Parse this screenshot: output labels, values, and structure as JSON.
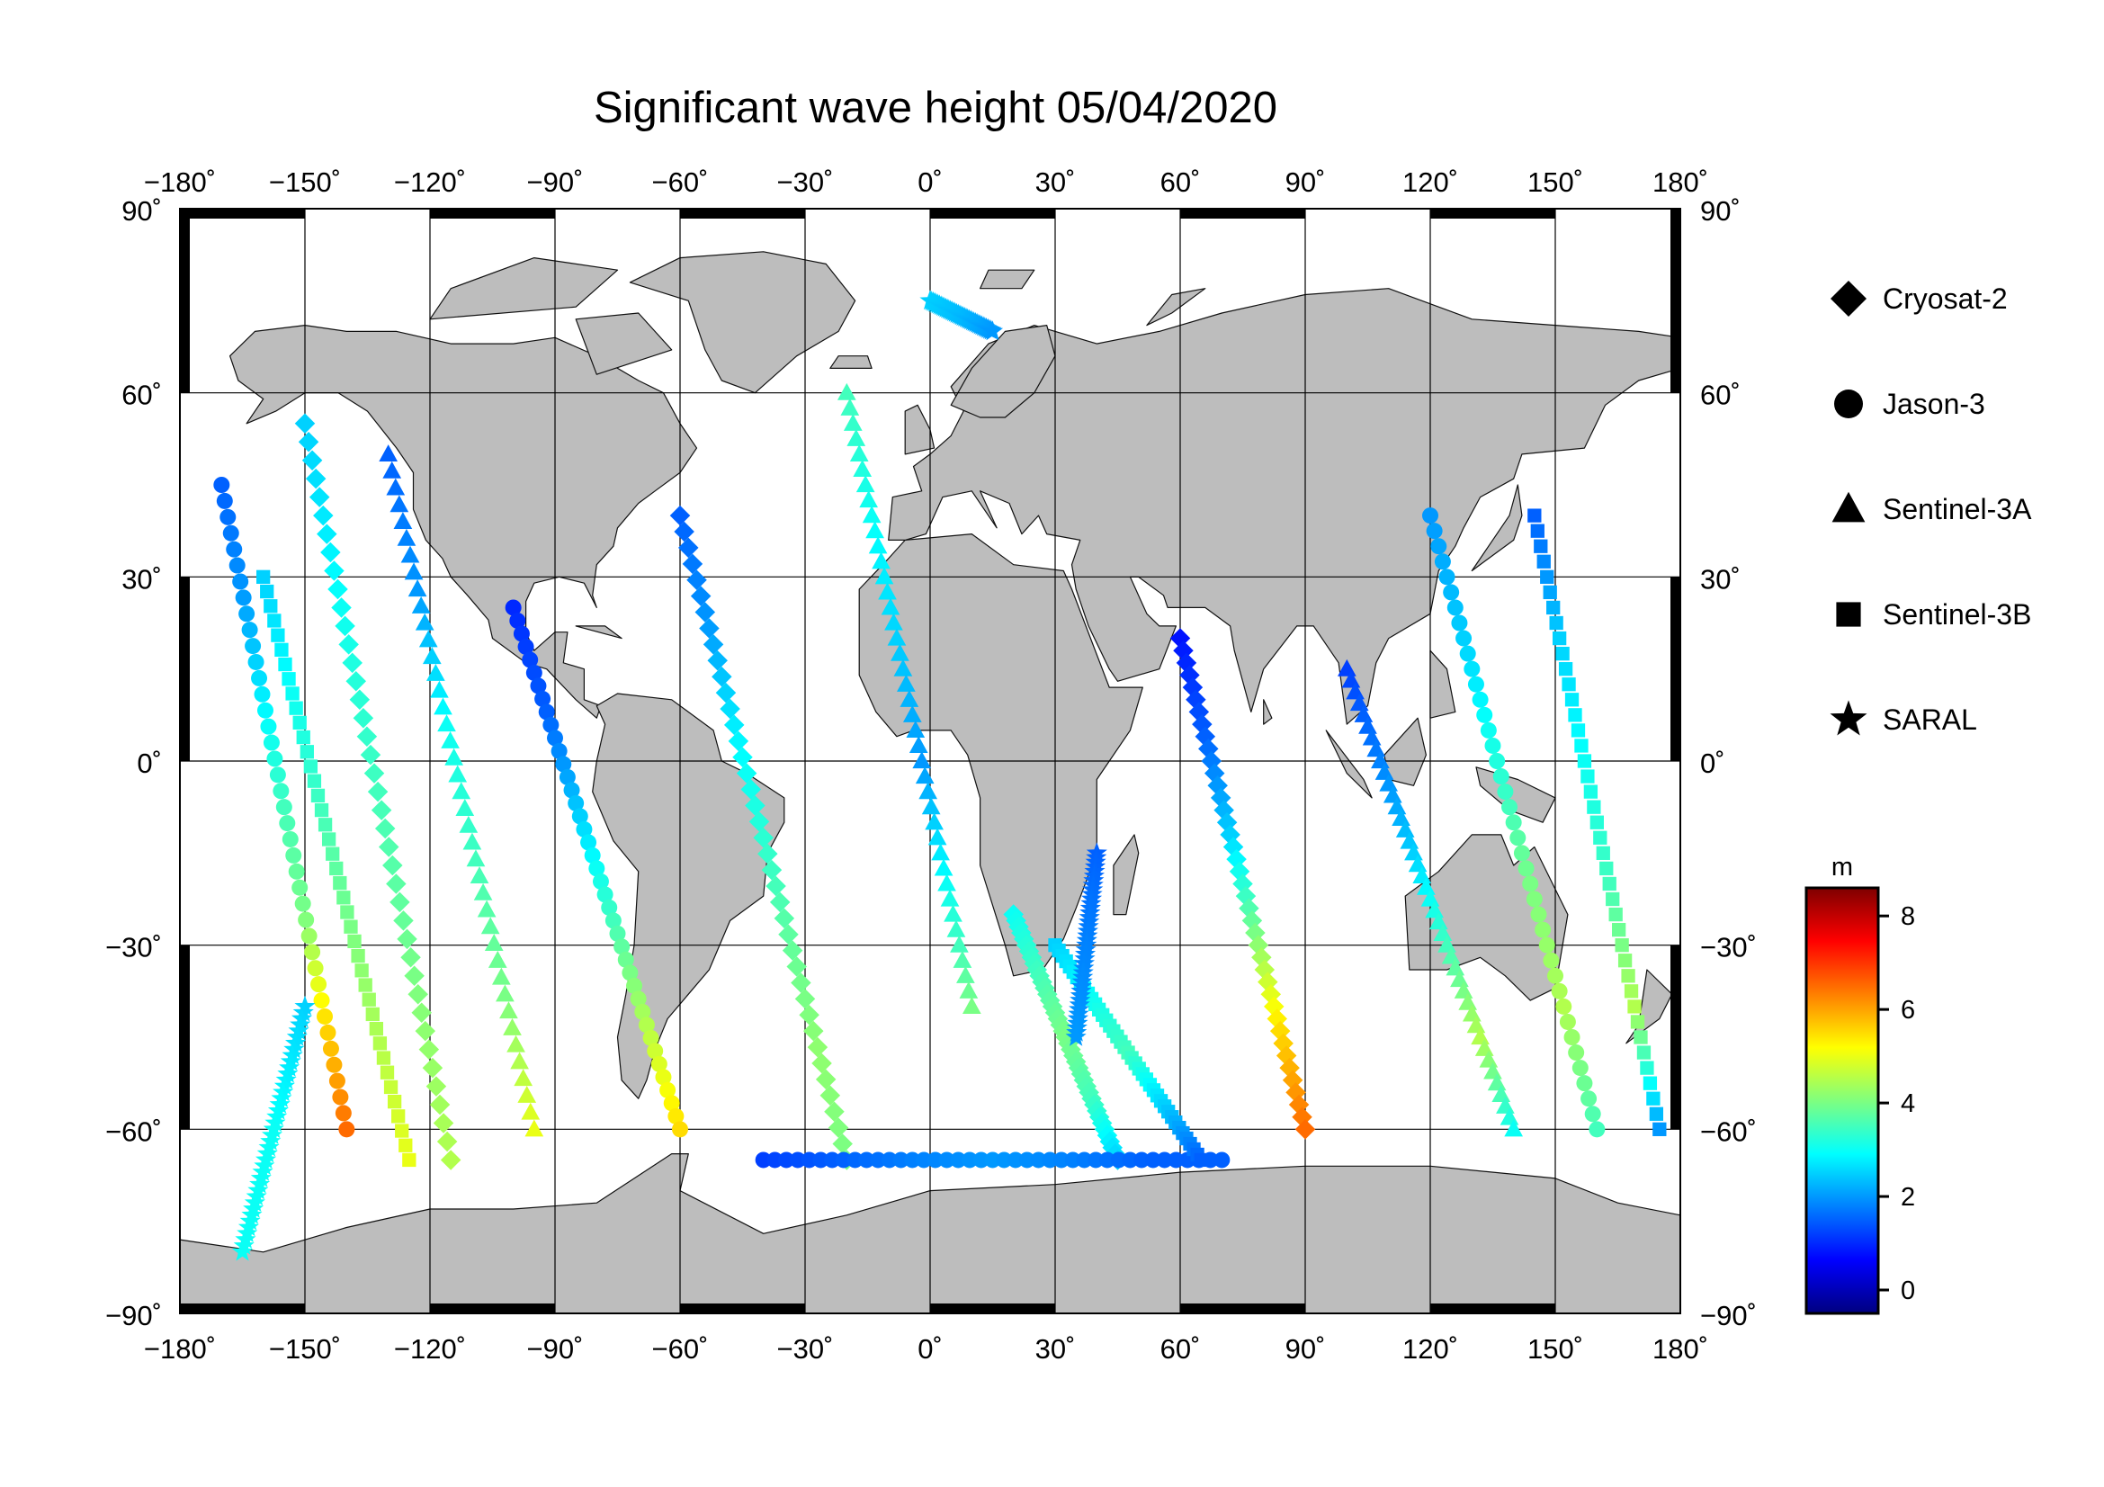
{
  "title": "Significant wave height 05/04/2020",
  "map": {
    "lon_range": [
      -180,
      180
    ],
    "lat_range": [
      -90,
      90
    ],
    "lon_ticks": [
      "−180˚",
      "−150˚",
      "−120˚",
      "−90˚",
      "−60˚",
      "−30˚",
      "0˚",
      "30˚",
      "60˚",
      "90˚",
      "120˚",
      "150˚",
      "180˚"
    ],
    "lat_ticks_left": [
      "90˚",
      "60˚",
      "30˚",
      "0˚",
      "−30˚",
      "−60˚",
      "−90˚"
    ],
    "lat_ticks_right": [
      "90˚",
      "60˚",
      "30˚",
      "0˚",
      "−30˚",
      "−60˚",
      "−90˚"
    ],
    "graticule_lon_step": 30,
    "graticule_lat_step": 30,
    "land_color": "#bdbdbd",
    "ocean_color": "#ffffff"
  },
  "legend": {
    "items": [
      {
        "label": "Cryosat-2",
        "marker": "diamond"
      },
      {
        "label": "Jason-3",
        "marker": "circle"
      },
      {
        "label": "Sentinel-3A",
        "marker": "triangle"
      },
      {
        "label": "Sentinel-3B",
        "marker": "square"
      },
      {
        "label": "SARAL",
        "marker": "star"
      }
    ]
  },
  "colorbar": {
    "unit": "m",
    "min": -0.5,
    "max": 8.6,
    "ticks": [
      "0",
      "2",
      "4",
      "6",
      "8"
    ],
    "tick_values": [
      0,
      2,
      4,
      6,
      8
    ],
    "colormap": [
      "#00007f",
      "#0000ff",
      "#007fff",
      "#00ffff",
      "#7fff7f",
      "#ffff00",
      "#ff7f00",
      "#ff0000",
      "#7f0000"
    ]
  },
  "chart_data": {
    "type": "scatter",
    "title": "Significant wave height 05/04/2020",
    "xlabel": "",
    "ylabel": "",
    "xlim": [
      -180,
      180
    ],
    "ylim": [
      -90,
      90
    ],
    "series": [
      {
        "name": "Cryosat-2",
        "marker": "diamond",
        "tracks": [
          {
            "start": [
              -150,
              55
            ],
            "end": [
              -115,
              -65
            ],
            "hs": [
              2.5,
              2.8,
              3.2,
              3.5,
              3.8,
              4.2,
              4.5
            ]
          },
          {
            "start": [
              -60,
              40
            ],
            "end": [
              -20,
              -65
            ],
            "hs": [
              1.5,
              2.0,
              2.8,
              3.3,
              3.8,
              4.2,
              4.0
            ]
          },
          {
            "start": [
              20,
              -25
            ],
            "end": [
              45,
              -65
            ],
            "hs": [
              3.0,
              3.5,
              4.0,
              3.5,
              2.5
            ]
          },
          {
            "start": [
              60,
              20
            ],
            "end": [
              90,
              -60
            ],
            "hs": [
              0.8,
              1.5,
              2.5,
              4.0,
              5.5,
              6.5
            ]
          }
        ]
      },
      {
        "name": "Jason-3",
        "marker": "circle",
        "tracks": [
          {
            "start": [
              -170,
              45
            ],
            "end": [
              -140,
              -60
            ],
            "hs": [
              1.5,
              2.0,
              2.8,
              3.5,
              4.0,
              5.5,
              6.5
            ]
          },
          {
            "start": [
              -100,
              25
            ],
            "end": [
              -60,
              -60
            ],
            "hs": [
              1.0,
              1.5,
              2.5,
              3.5,
              4.5,
              5.5
            ]
          },
          {
            "start": [
              -40,
              -65
            ],
            "end": [
              70,
              -65
            ],
            "hs": [
              1.2,
              1.5,
              1.8,
              2.0,
              1.8,
              1.5,
              1.5
            ]
          },
          {
            "start": [
              120,
              40
            ],
            "end": [
              160,
              -60
            ],
            "hs": [
              2.0,
              2.5,
              3.2,
              4.0,
              4.5,
              3.5
            ]
          }
        ]
      },
      {
        "name": "Sentinel-3A",
        "marker": "triangle",
        "tracks": [
          {
            "start": [
              -130,
              50
            ],
            "end": [
              -95,
              -60
            ],
            "hs": [
              1.5,
              2.0,
              3.0,
              3.5,
              4.0,
              5.0
            ]
          },
          {
            "start": [
              -20,
              60
            ],
            "end": [
              10,
              -40
            ],
            "hs": [
              3.5,
              3.0,
              2.5,
              2.0,
              3.0,
              4.0
            ]
          },
          {
            "start": [
              100,
              15
            ],
            "end": [
              140,
              -60
            ],
            "hs": [
              1.2,
              1.8,
              2.5,
              3.5,
              4.5,
              3.0
            ]
          }
        ]
      },
      {
        "name": "Sentinel-3B",
        "marker": "square",
        "tracks": [
          {
            "start": [
              -160,
              30
            ],
            "end": [
              -125,
              -65
            ],
            "hs": [
              2.5,
              3.0,
              3.5,
              4.0,
              4.5,
              5.0
            ]
          },
          {
            "start": [
              30,
              -30
            ],
            "end": [
              65,
              -65
            ],
            "hs": [
              2.5,
              3.0,
              3.5,
              2.5,
              1.5
            ]
          },
          {
            "start": [
              145,
              40
            ],
            "end": [
              175,
              -60
            ],
            "hs": [
              1.5,
              2.5,
              3.0,
              3.5,
              4.5,
              2.0
            ]
          }
        ]
      },
      {
        "name": "SARAL",
        "marker": "star",
        "tracks": [
          {
            "start": [
              0,
              75
            ],
            "end": [
              15,
              70
            ],
            "hs": [
              2.5,
              2.3,
              2.0
            ]
          },
          {
            "start": [
              -150,
              -40
            ],
            "end": [
              -165,
              -80
            ],
            "hs": [
              2.5,
              3.0,
              3.0
            ]
          },
          {
            "start": [
              40,
              -15
            ],
            "end": [
              35,
              -45
            ],
            "hs": [
              1.5,
              1.8,
              2.0
            ]
          }
        ]
      }
    ]
  }
}
